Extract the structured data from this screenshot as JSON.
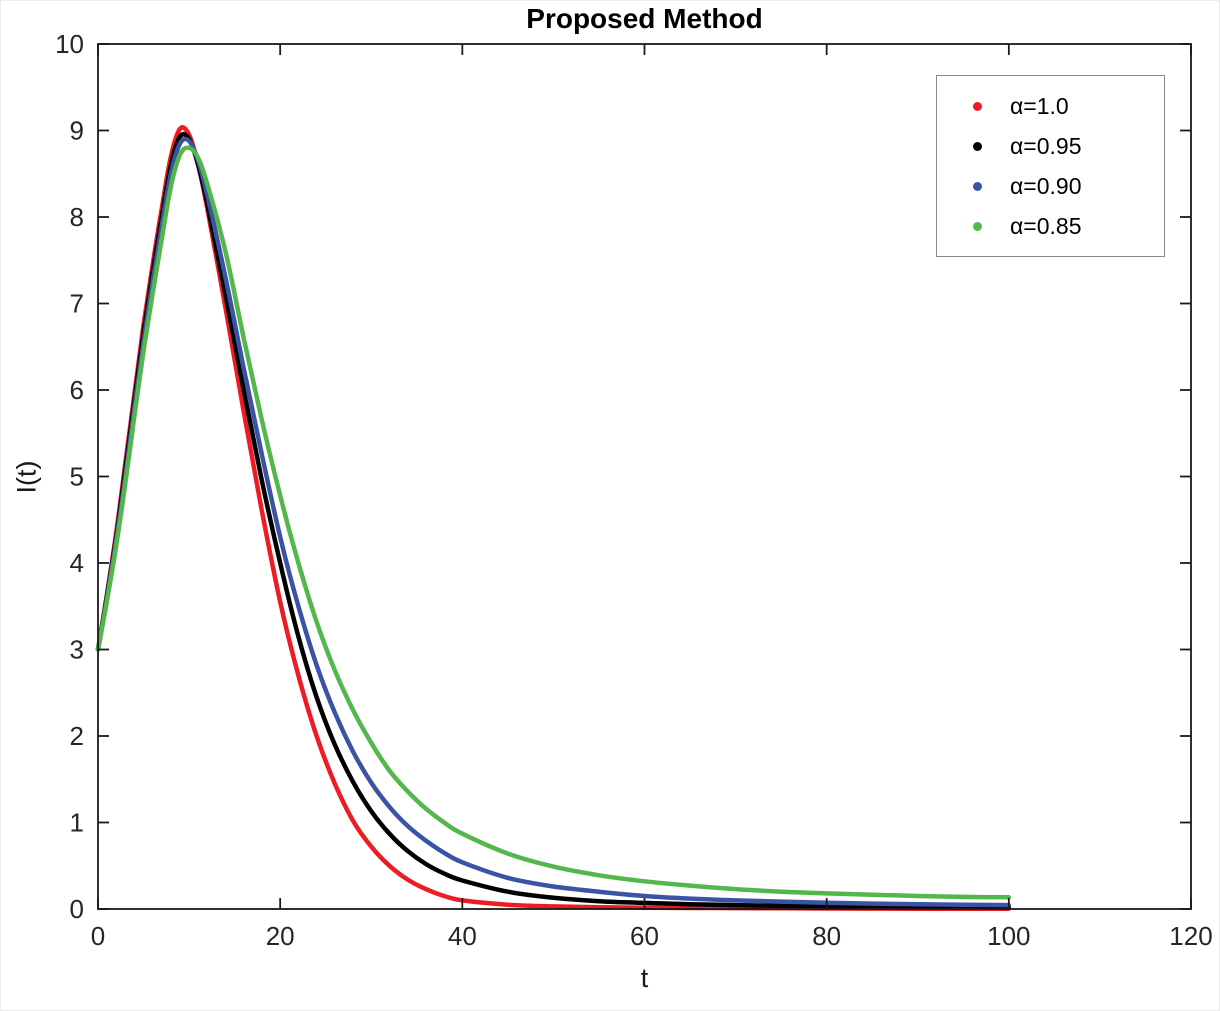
{
  "figure": {
    "background": "#ffffff",
    "axis_color": "#1a1a1a",
    "tick_label_color": "#262626"
  },
  "chart_data": {
    "type": "line",
    "title": "Proposed Method",
    "xlabel": "t",
    "ylabel": "I(t)",
    "xlim": [
      0,
      120
    ],
    "ylim": [
      0,
      10
    ],
    "xticks": [
      0,
      20,
      40,
      60,
      80,
      100,
      120
    ],
    "yticks": [
      0,
      1,
      2,
      3,
      4,
      5,
      6,
      7,
      8,
      9,
      10
    ],
    "grid": false,
    "legend_position": "top-right",
    "x": [
      0,
      1,
      2,
      3,
      4,
      5,
      6,
      7,
      8,
      9,
      10,
      11,
      12,
      14,
      16,
      18,
      20,
      22,
      24,
      26,
      28,
      30,
      32,
      34,
      36,
      38,
      40,
      45,
      50,
      55,
      60,
      65,
      70,
      75,
      80,
      85,
      90,
      95,
      100
    ],
    "series": [
      {
        "name": "α=1.0",
        "color": "#ed1c24",
        "marker": "dot",
        "y": [
          3.0,
          3.65,
          4.35,
          5.15,
          5.95,
          6.75,
          7.45,
          8.1,
          8.7,
          9.02,
          8.95,
          8.6,
          8.1,
          6.95,
          5.75,
          4.6,
          3.55,
          2.7,
          2.0,
          1.45,
          1.02,
          0.72,
          0.5,
          0.34,
          0.23,
          0.15,
          0.1,
          0.05,
          0.03,
          0.02,
          0.015,
          0.012,
          0.01,
          0.008,
          0.006,
          0.005,
          0.004,
          0.003,
          0.003
        ]
      },
      {
        "name": "α=0.95",
        "color": "#000000",
        "marker": "dot",
        "y": [
          3.0,
          3.63,
          4.3,
          5.08,
          5.88,
          6.66,
          7.36,
          8.0,
          8.6,
          8.93,
          8.9,
          8.6,
          8.15,
          7.1,
          6.0,
          4.95,
          4.0,
          3.15,
          2.45,
          1.9,
          1.47,
          1.13,
          0.87,
          0.67,
          0.52,
          0.41,
          0.33,
          0.2,
          0.13,
          0.09,
          0.07,
          0.055,
          0.045,
          0.038,
          0.032,
          0.028,
          0.025,
          0.022,
          0.02
        ]
      },
      {
        "name": "α=0.90",
        "color": "#3a53a4",
        "marker": "dot",
        "y": [
          3.0,
          3.6,
          4.26,
          5.0,
          5.8,
          6.56,
          7.26,
          7.9,
          8.5,
          8.85,
          8.88,
          8.65,
          8.25,
          7.3,
          6.25,
          5.25,
          4.3,
          3.5,
          2.82,
          2.27,
          1.82,
          1.46,
          1.18,
          0.96,
          0.79,
          0.65,
          0.54,
          0.36,
          0.26,
          0.2,
          0.15,
          0.12,
          0.1,
          0.085,
          0.072,
          0.062,
          0.055,
          0.05,
          0.045
        ]
      },
      {
        "name": "α=0.85",
        "color": "#53b74c",
        "marker": "dot",
        "y": [
          3.0,
          3.57,
          4.2,
          4.92,
          5.7,
          6.45,
          7.12,
          7.75,
          8.35,
          8.72,
          8.8,
          8.68,
          8.38,
          7.6,
          6.6,
          5.65,
          4.78,
          4.0,
          3.32,
          2.76,
          2.3,
          1.92,
          1.6,
          1.36,
          1.16,
          1.0,
          0.87,
          0.64,
          0.49,
          0.39,
          0.32,
          0.27,
          0.23,
          0.2,
          0.18,
          0.165,
          0.15,
          0.14,
          0.135
        ]
      }
    ]
  }
}
